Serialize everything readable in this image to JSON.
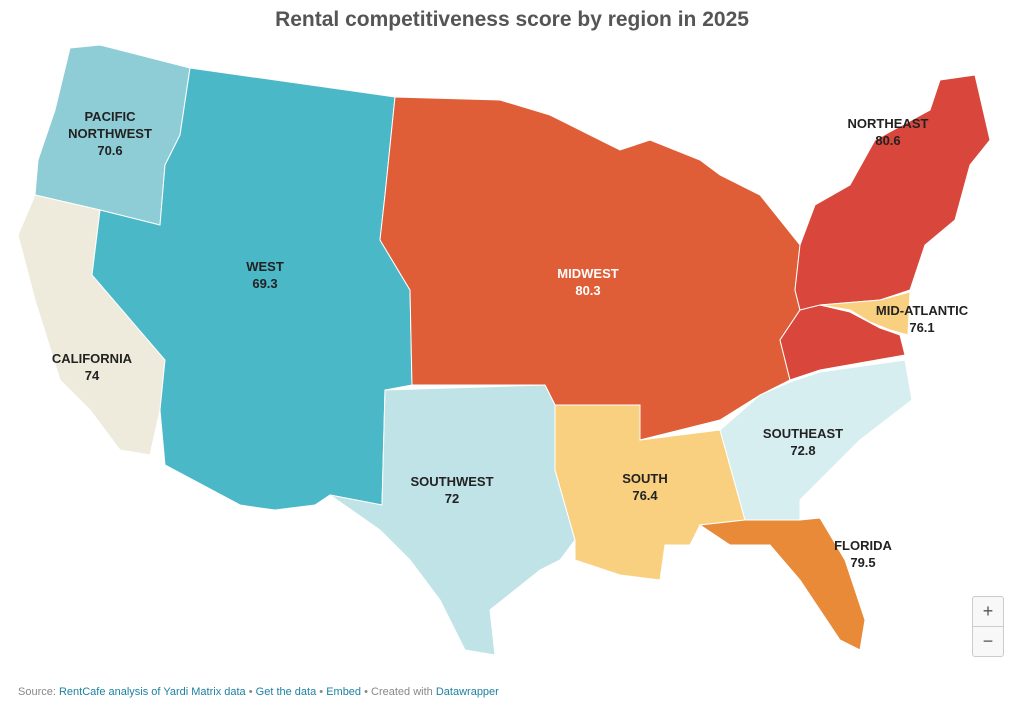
{
  "title": "Rental competitiveness score by region in 2025",
  "regions": [
    {
      "name": "PACIFIC NORTHWEST",
      "value": 70.6,
      "color": "#8ecdd6"
    },
    {
      "name": "CALIFORNIA",
      "value": 74,
      "color": "#eeebdd"
    },
    {
      "name": "WEST",
      "value": 69.3,
      "color": "#4bb8c7"
    },
    {
      "name": "MIDWEST",
      "value": 80.3,
      "color": "#df5e37"
    },
    {
      "name": "NORTHEAST",
      "value": 80.6,
      "color": "#d9463b"
    },
    {
      "name": "MID-ATLANTIC",
      "value": 76.1,
      "color": "#f8d07f"
    },
    {
      "name": "SOUTHWEST",
      "value": 72,
      "color": "#bfe3e7"
    },
    {
      "name": "SOUTH",
      "value": 76.4,
      "color": "#f8d07f"
    },
    {
      "name": "SOUTHEAST",
      "value": 72.8,
      "color": "#d7eef0"
    },
    {
      "name": "FLORIDA",
      "value": 79.5,
      "color": "#e88a37"
    }
  ],
  "zoom_controls": [
    "+",
    "−"
  ],
  "footer": {
    "source_label": "Source:",
    "source": "RentCafe analysis of Yardi Matrix data",
    "separator": "•",
    "get_data": "Get the data",
    "embed": "Embed",
    "created": "Created with",
    "tool": "Datawrapper"
  }
}
